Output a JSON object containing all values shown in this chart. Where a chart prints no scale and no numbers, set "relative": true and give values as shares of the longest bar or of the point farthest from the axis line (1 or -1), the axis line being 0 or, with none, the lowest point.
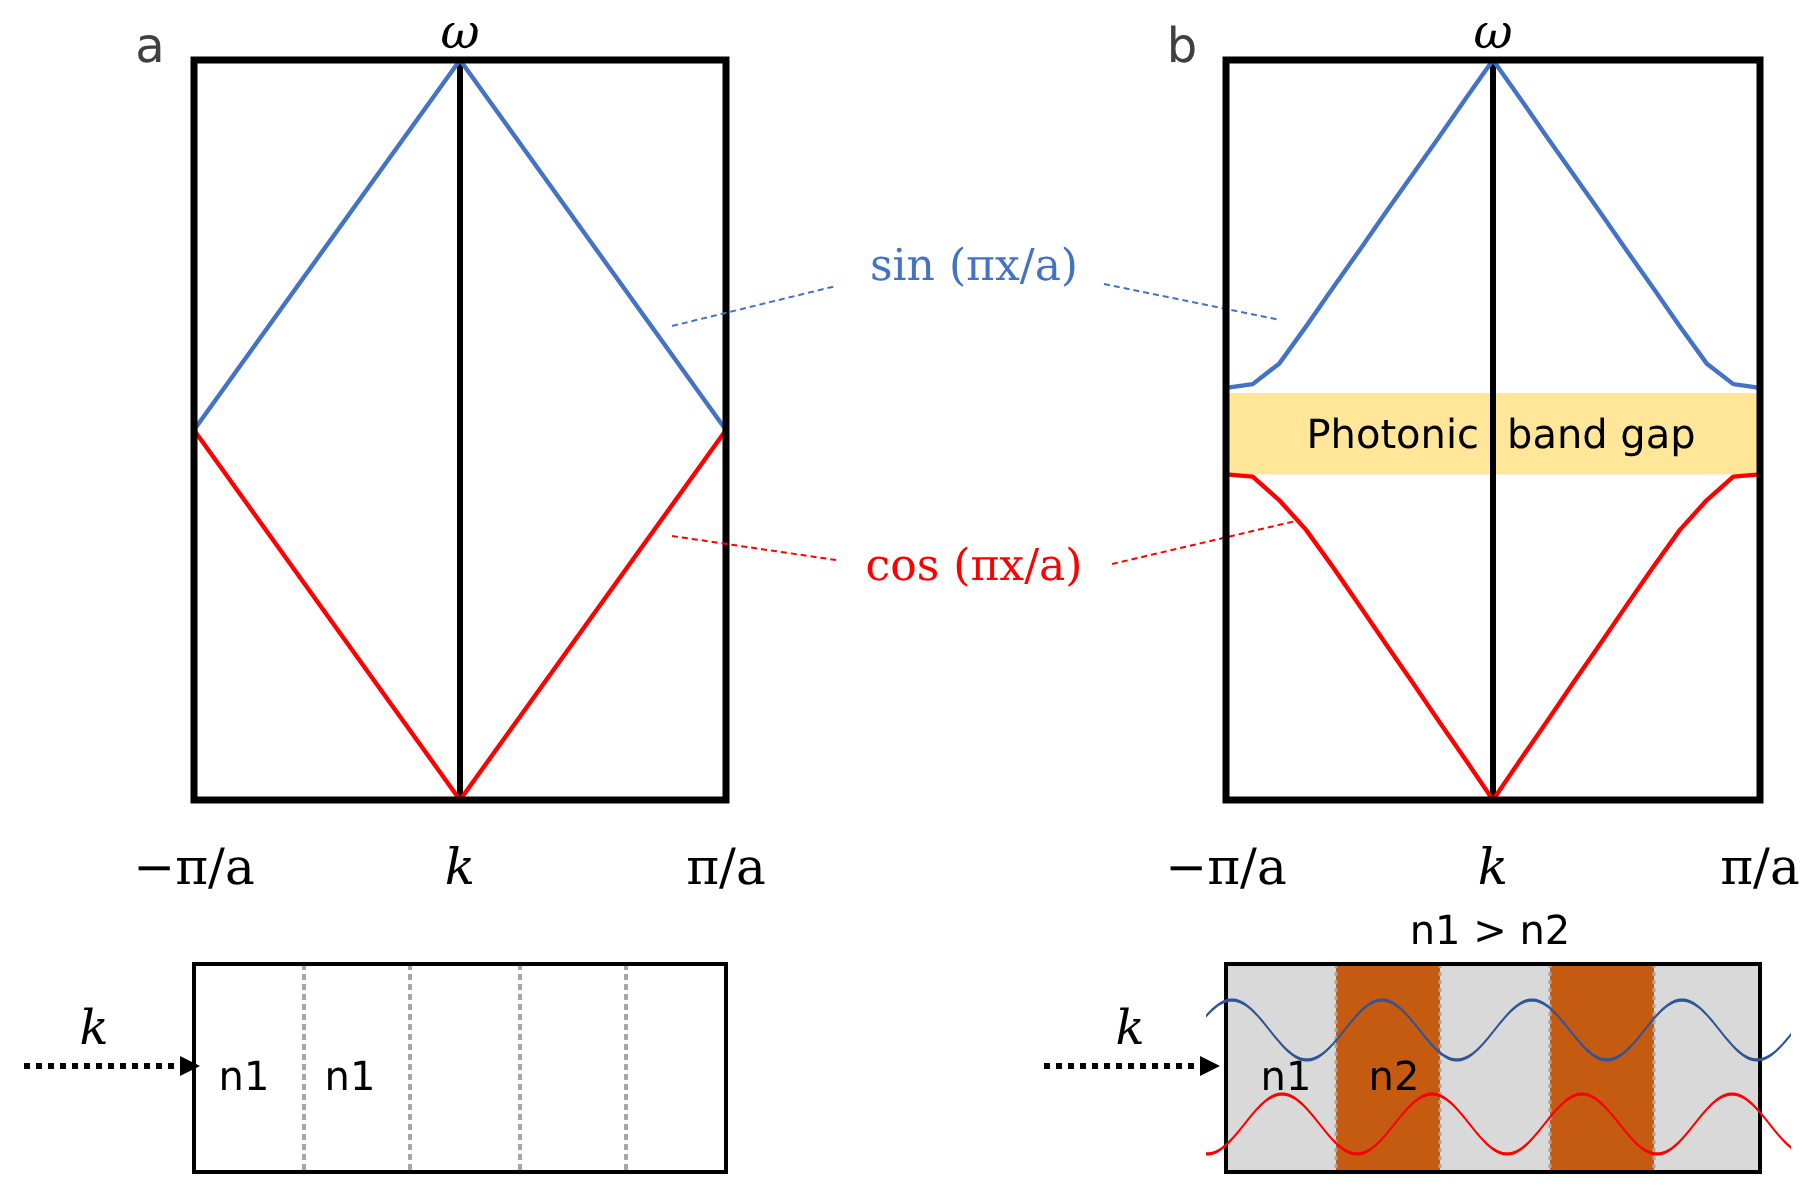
{
  "chart_data": [
    {
      "type": "line",
      "title": "a",
      "ylabel": "ω",
      "categories": [
        "−π/a",
        "k",
        "π/a"
      ],
      "relative": true,
      "legend": "right",
      "ref_lines": [
        {
          "axis": "x",
          "value": "k",
          "color": "#000000"
        }
      ],
      "series": [
        {
          "name": "sin (πx/a)",
          "color": "#4472c4",
          "values": [
            0.5,
            1,
            0.5
          ]
        },
        {
          "name": "cos (πx/a)",
          "color": "#ff0000",
          "values": [
            0.5,
            0,
            0.5
          ]
        }
      ]
    },
    {
      "type": "line",
      "title": "b",
      "ylabel": "ω",
      "categories": [
        "−π/a",
        null,
        null,
        null,
        null,
        null,
        null,
        null,
        null,
        null,
        "k",
        null,
        null,
        null,
        null,
        null,
        null,
        null,
        null,
        null,
        "π/a"
      ],
      "relative": true,
      "ref_lines": [
        {
          "axis": "x",
          "value": "k",
          "color": "#000000"
        }
      ],
      "bands": [
        {
          "axis": "y",
          "from": 0.44,
          "to": 0.55,
          "label": "Photonic band gap",
          "color": "#ffe699"
        }
      ],
      "series": [
        {
          "color": "#4472c4",
          "values": [
            0.557,
            0.562,
            0.59,
            0.64,
            0.692,
            0.743,
            0.795,
            0.846,
            0.897,
            0.949,
            1,
            0.949,
            0.897,
            0.846,
            0.795,
            0.743,
            0.692,
            0.64,
            0.59,
            0.562,
            0.557
          ]
        },
        {
          "color": "#ff0000",
          "values": [
            0.44,
            0.437,
            0.405,
            0.365,
            0.315,
            0.263,
            0.21,
            0.158,
            0.105,
            0.053,
            0,
            0.053,
            0.105,
            0.158,
            0.21,
            0.263,
            0.315,
            0.365,
            0.405,
            0.437,
            0.44
          ]
        }
      ]
    },
    {
      "type": "other",
      "annotations": [
        "k",
        "n1",
        "n1"
      ]
    },
    {
      "type": "other",
      "annotations": [
        "k",
        "n1 > n2",
        "n1",
        "n2"
      ]
    }
  ]
}
